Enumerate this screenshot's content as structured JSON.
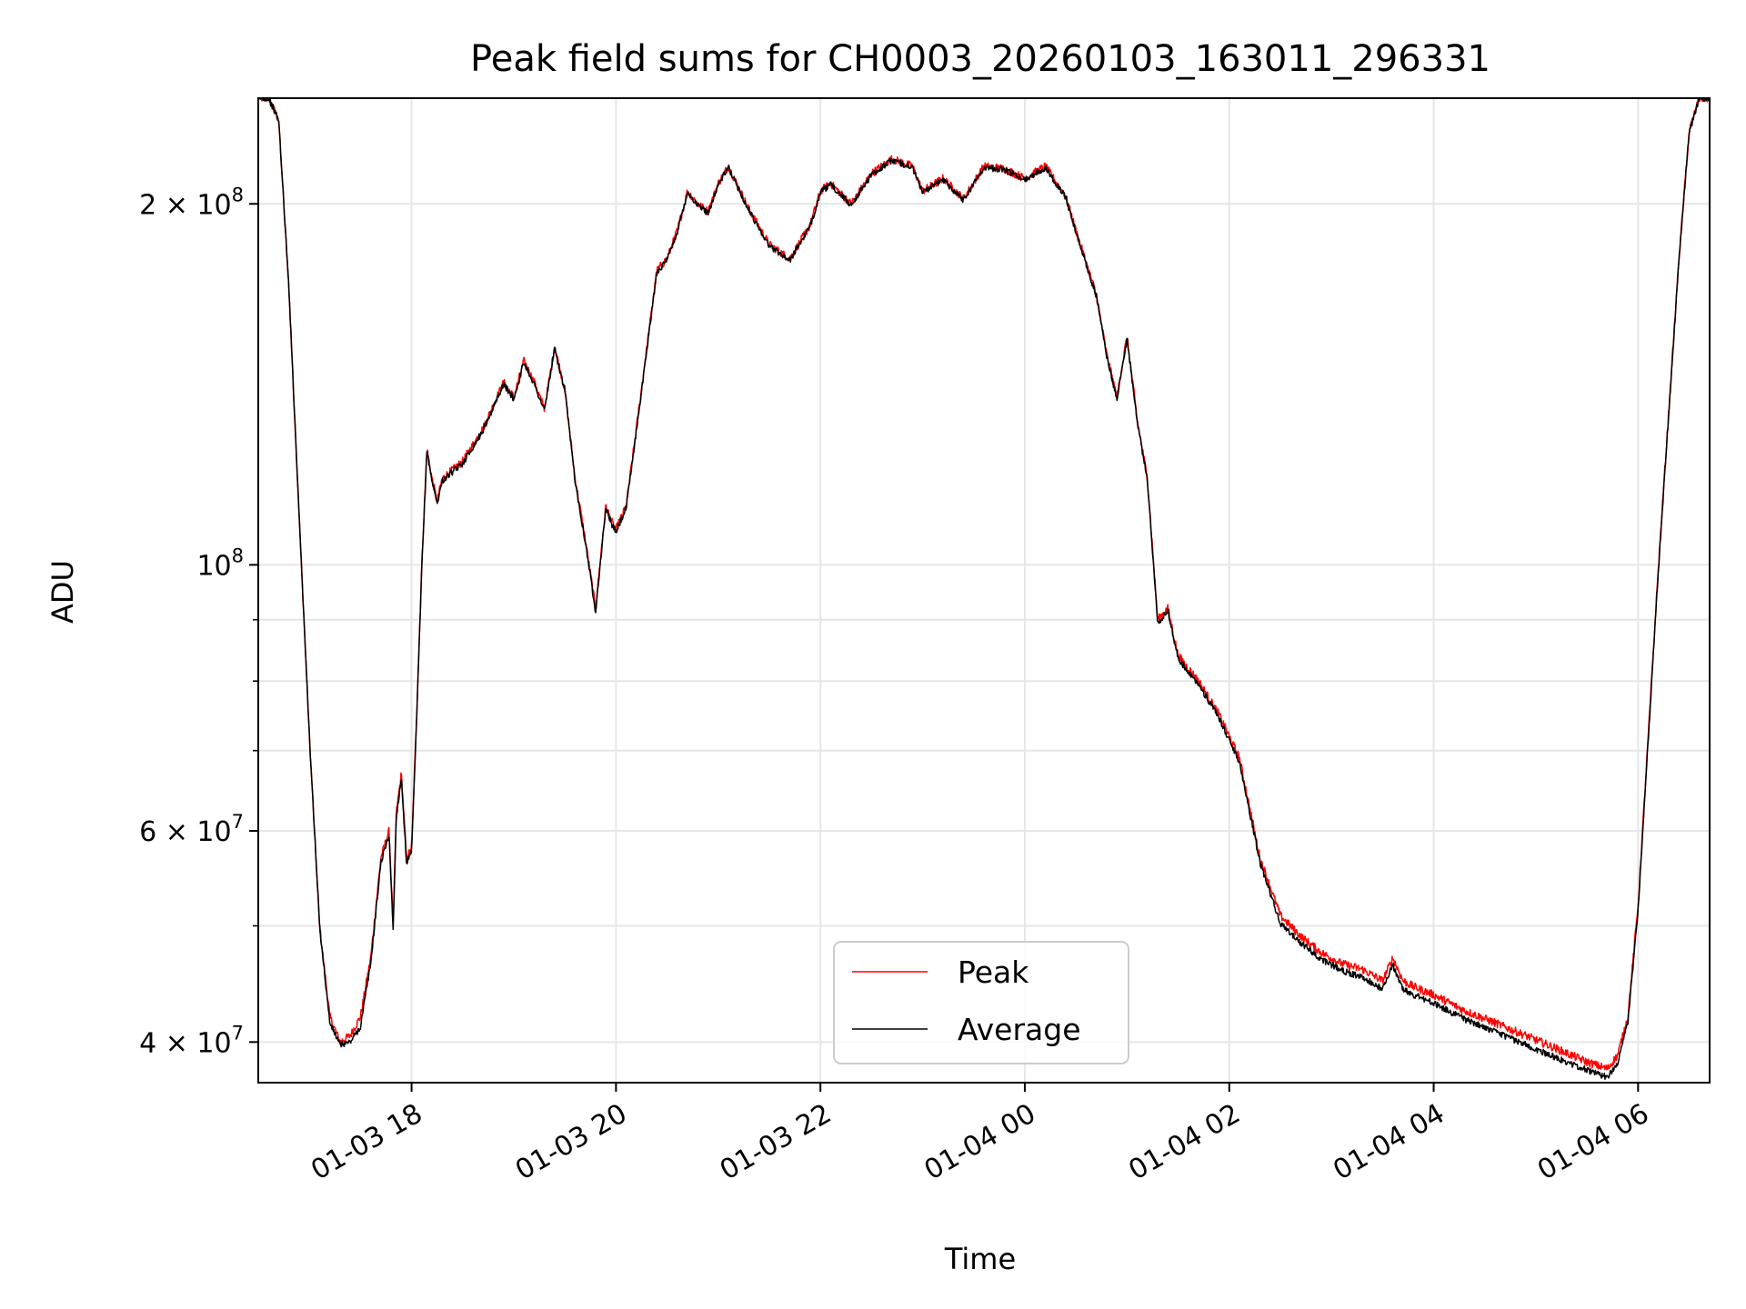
{
  "chart_data": {
    "type": "line",
    "title": "Peak field sums for CH0003_20260103_163011_296331",
    "xlabel": "Time",
    "ylabel": "ADU",
    "yscale": "log",
    "ylim": [
      37000000,
      245000000
    ],
    "xlim_hours": [
      16.5,
      30.7
    ],
    "x_unit": "hours since 2026-01-03 00:00",
    "grid": true,
    "legend_position": "lower center",
    "x_ticks": [
      {
        "label": "01-03 18",
        "value": 18
      },
      {
        "label": "01-03 20",
        "value": 20
      },
      {
        "label": "01-03 22",
        "value": 22
      },
      {
        "label": "01-04 00",
        "value": 24
      },
      {
        "label": "01-04 02",
        "value": 26
      },
      {
        "label": "01-04 04",
        "value": 28
      },
      {
        "label": "01-04 06",
        "value": 30
      }
    ],
    "y_ticks": [
      {
        "label_base": "2 × 10",
        "label_exp": "8",
        "value": 200000000
      },
      {
        "label_base": "10",
        "label_exp": "8",
        "value": 100000000
      },
      {
        "label_base": "6 × 10",
        "label_exp": "7",
        "value": 60000000
      },
      {
        "label_base": "4 × 10",
        "label_exp": "7",
        "value": 40000000
      }
    ],
    "y_minor_ticks": [
      50000000,
      70000000,
      80000000,
      90000000
    ],
    "series": [
      {
        "name": "Peak",
        "color": "#ff0000",
        "noise_amplitude": 0.008,
        "x": [
          16.5,
          16.6,
          16.7,
          16.8,
          16.9,
          17.0,
          17.1,
          17.2,
          17.3,
          17.4,
          17.5,
          17.6,
          17.7,
          17.78,
          17.82,
          17.85,
          17.9,
          17.95,
          18.0,
          18.05,
          18.1,
          18.15,
          18.2,
          18.25,
          18.3,
          18.5,
          18.7,
          18.9,
          19.0,
          19.1,
          19.2,
          19.3,
          19.4,
          19.5,
          19.6,
          19.7,
          19.8,
          19.9,
          19.97,
          20.0,
          20.1,
          20.2,
          20.4,
          20.5,
          20.6,
          20.7,
          20.8,
          20.9,
          21.0,
          21.1,
          21.3,
          21.5,
          21.7,
          21.9,
          22.0,
          22.1,
          22.3,
          22.5,
          22.7,
          22.9,
          23.0,
          23.2,
          23.4,
          23.6,
          23.8,
          24.0,
          24.2,
          24.4,
          24.5,
          24.7,
          24.8,
          24.9,
          25.0,
          25.1,
          25.2,
          25.3,
          25.4,
          25.5,
          25.7,
          25.9,
          26.1,
          26.3,
          26.5,
          26.7,
          26.9,
          27.1,
          27.3,
          27.5,
          27.6,
          27.65,
          27.7,
          27.8,
          28.0,
          28.3,
          28.6,
          28.9,
          29.2,
          29.5,
          29.7,
          29.8,
          29.9,
          30.0,
          30.2,
          30.4,
          30.5,
          30.6,
          30.7
        ],
        "y": [
          245000000,
          245000000,
          235000000,
          170000000,
          110000000,
          72000000,
          50000000,
          42000000,
          40000000,
          40500000,
          42000000,
          47000000,
          57000000,
          60000000,
          50000000,
          62000000,
          67000000,
          57000000,
          58000000,
          75000000,
          100000000,
          125000000,
          118000000,
          113000000,
          118000000,
          122000000,
          130000000,
          142000000,
          138000000,
          148000000,
          142000000,
          135000000,
          152000000,
          140000000,
          118000000,
          105000000,
          92000000,
          112000000,
          108000000,
          107000000,
          112000000,
          130000000,
          176000000,
          180000000,
          190000000,
          205000000,
          200000000,
          197000000,
          208000000,
          215000000,
          198000000,
          185000000,
          180000000,
          192000000,
          205000000,
          208000000,
          200000000,
          212000000,
          218000000,
          215000000,
          205000000,
          210000000,
          202000000,
          215000000,
          214000000,
          210000000,
          215000000,
          203000000,
          190000000,
          168000000,
          150000000,
          138000000,
          155000000,
          132000000,
          118000000,
          90000000,
          92000000,
          84000000,
          80000000,
          75000000,
          69000000,
          57000000,
          51000000,
          49000000,
          47500000,
          46500000,
          46000000,
          45000000,
          47000000,
          46000000,
          45000000,
          44500000,
          43800000,
          42500000,
          41500000,
          40500000,
          39500000,
          38500000,
          38000000,
          39000000,
          42000000,
          52000000,
          100000000,
          180000000,
          230000000,
          245000000,
          245000000
        ]
      },
      {
        "name": "Average",
        "color": "#000000",
        "noise_amplitude": 0.006,
        "x": [
          16.5,
          16.6,
          16.7,
          16.8,
          16.9,
          17.0,
          17.1,
          17.2,
          17.3,
          17.4,
          17.5,
          17.6,
          17.7,
          17.78,
          17.82,
          17.85,
          17.9,
          17.95,
          18.0,
          18.05,
          18.1,
          18.15,
          18.2,
          18.25,
          18.3,
          18.5,
          18.7,
          18.9,
          19.0,
          19.1,
          19.2,
          19.3,
          19.4,
          19.5,
          19.6,
          19.7,
          19.8,
          19.9,
          19.97,
          20.0,
          20.1,
          20.2,
          20.4,
          20.5,
          20.6,
          20.7,
          20.8,
          20.9,
          21.0,
          21.1,
          21.3,
          21.5,
          21.7,
          21.9,
          22.0,
          22.1,
          22.3,
          22.5,
          22.7,
          22.9,
          23.0,
          23.2,
          23.4,
          23.6,
          23.8,
          24.0,
          24.2,
          24.4,
          24.5,
          24.7,
          24.8,
          24.9,
          25.0,
          25.1,
          25.2,
          25.3,
          25.4,
          25.5,
          25.7,
          25.9,
          26.1,
          26.3,
          26.5,
          26.7,
          26.9,
          27.1,
          27.3,
          27.5,
          27.6,
          27.65,
          27.7,
          27.8,
          28.0,
          28.3,
          28.6,
          28.9,
          29.2,
          29.5,
          29.7,
          29.8,
          29.9,
          30.0,
          30.2,
          30.4,
          30.5,
          30.6,
          30.7
        ],
        "y": [
          245000000,
          245000000,
          235000000,
          170000000,
          110000000,
          72000000,
          50000000,
          41500000,
          39800000,
          40000000,
          41200000,
          46500000,
          56500000,
          59500000,
          49500000,
          61500000,
          66500000,
          56500000,
          57500000,
          74500000,
          99500000,
          124500000,
          117500000,
          112500000,
          117500000,
          121500000,
          129500000,
          141500000,
          137500000,
          147500000,
          141500000,
          134500000,
          151500000,
          139500000,
          117500000,
          104500000,
          91500000,
          111500000,
          107500000,
          106500000,
          111500000,
          129500000,
          175500000,
          179500000,
          189500000,
          204500000,
          199500000,
          196500000,
          207500000,
          214500000,
          197500000,
          184500000,
          179500000,
          191500000,
          204500000,
          207500000,
          199500000,
          211500000,
          217500000,
          214500000,
          204500000,
          209500000,
          201500000,
          214500000,
          213500000,
          209500000,
          214500000,
          202500000,
          189500000,
          167500000,
          149500000,
          137500000,
          154500000,
          131500000,
          117500000,
          89500000,
          91500000,
          83500000,
          79500000,
          74500000,
          68500000,
          56500000,
          50200000,
          48400000,
          46900000,
          45900000,
          45300000,
          44300000,
          46400000,
          45300000,
          44300000,
          43800000,
          43100000,
          41800000,
          40800000,
          39800000,
          38800000,
          37900000,
          37400000,
          38500000,
          41500000,
          51500000,
          99500000,
          179500000,
          229500000,
          245000000,
          245000000
        ]
      }
    ]
  }
}
